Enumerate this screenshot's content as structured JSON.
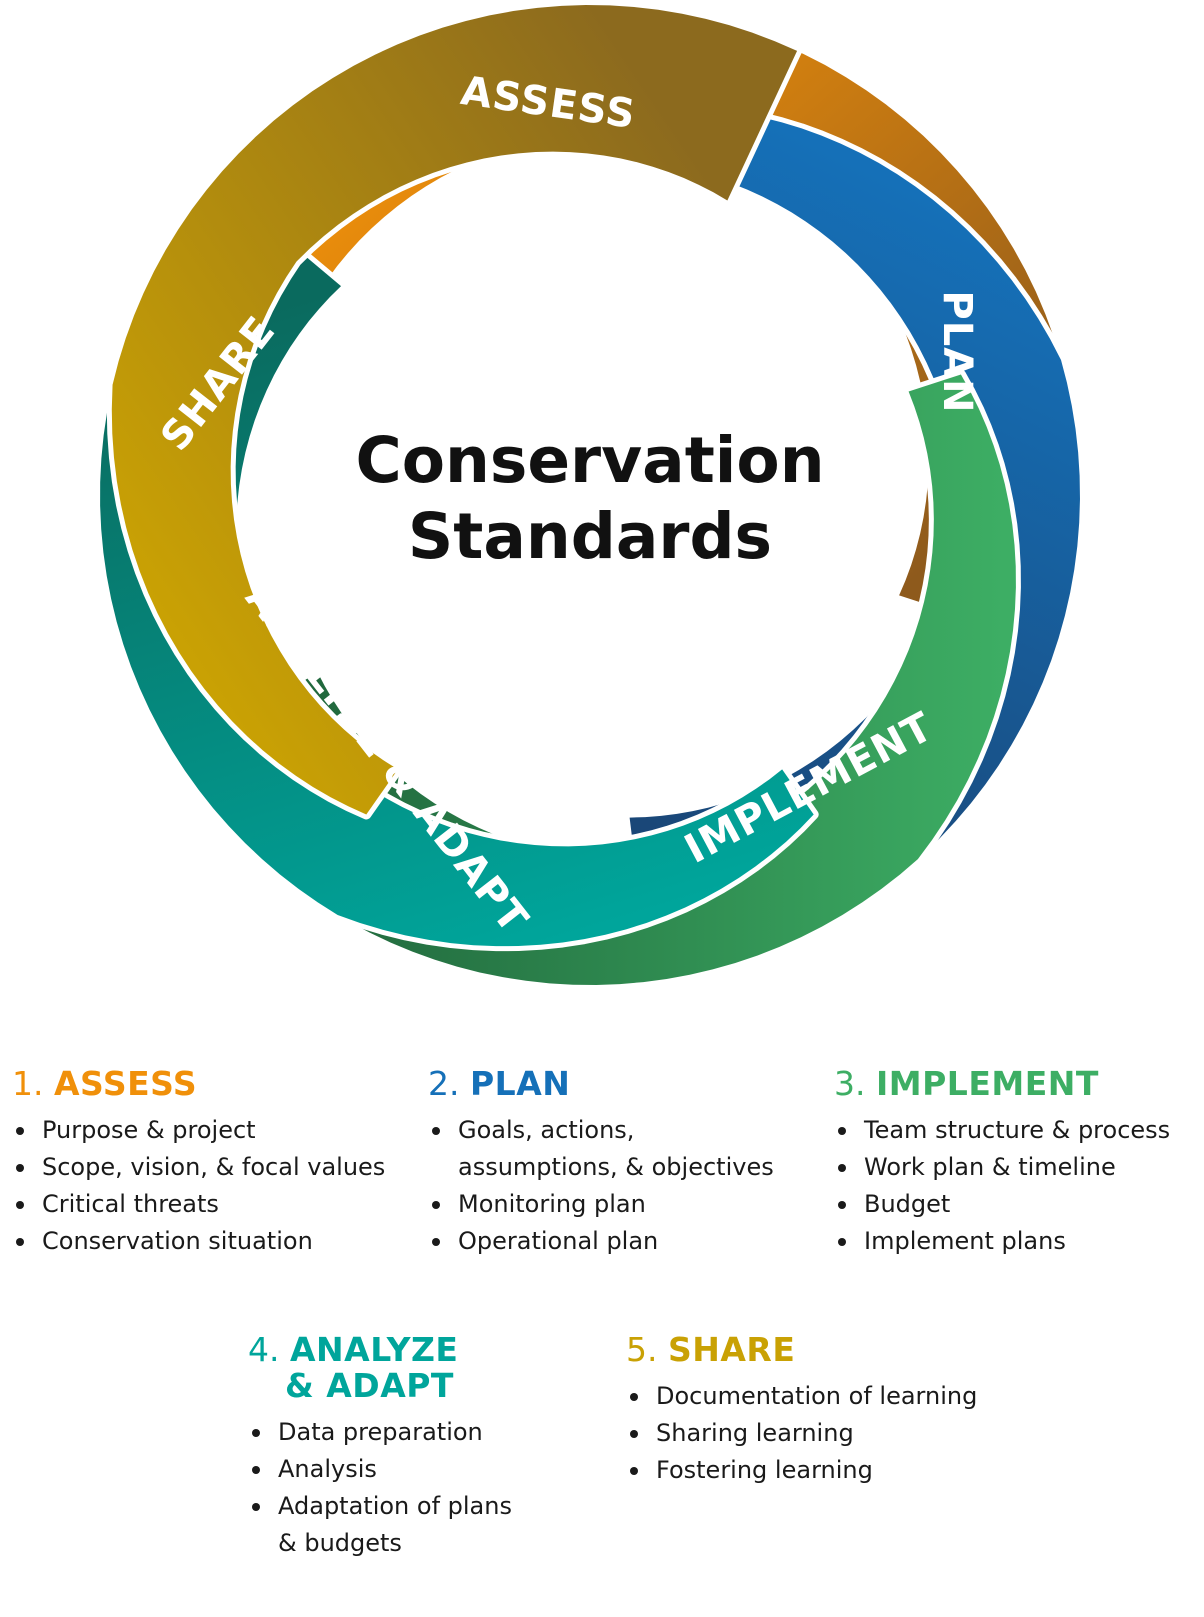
{
  "diagram": {
    "center_title": [
      "Conservation",
      "Standards"
    ],
    "arc_labels": {
      "assess": "ASSESS",
      "plan": "PLAN",
      "implement": "IMPLEMENT",
      "analyze": "ANALYZE & ADAPT",
      "share": "SHARE"
    },
    "colors": {
      "assess": "#F0900A",
      "assess_inner": "#8E5A1C",
      "plan": "#1570B8",
      "plan_inner": "#1A4778",
      "implement": "#3DAE64",
      "implement_inner": "#21683D",
      "analyze": "#00A59B",
      "analyze_inner": "#0A6A5E",
      "share": "#C9A104",
      "share_inner": "#8C6A1E"
    }
  },
  "steps": [
    {
      "num": "1.",
      "name": "ASSESS",
      "name2": "",
      "color": "#F0900A",
      "items": [
        "Purpose & project",
        "Scope, vision, & focal values",
        "Critical threats",
        "Conservation situation"
      ]
    },
    {
      "num": "2.",
      "name": "PLAN",
      "name2": "",
      "color": "#1570B8",
      "items": [
        "Goals, actions,",
        "Monitoring plan",
        "Operational plan"
      ],
      "item1_cont": "assumptions, & objectives"
    },
    {
      "num": "3.",
      "name": "IMPLEMENT",
      "name2": "",
      "color": "#3DAE64",
      "items": [
        "Team structure & process",
        "Work plan & timeline",
        "Budget",
        "Implement plans"
      ]
    },
    {
      "num": "4.",
      "name": "ANALYZE",
      "name2": "& ADAPT",
      "color": "#00A59B",
      "items": [
        "Data preparation",
        "Analysis",
        "Adaptation of plans"
      ],
      "item3_cont": "& budgets"
    },
    {
      "num": "5.",
      "name": "SHARE",
      "name2": "",
      "color": "#C9A104",
      "items": [
        "Documentation of learning",
        "Sharing learning",
        "Fostering learning"
      ]
    }
  ]
}
